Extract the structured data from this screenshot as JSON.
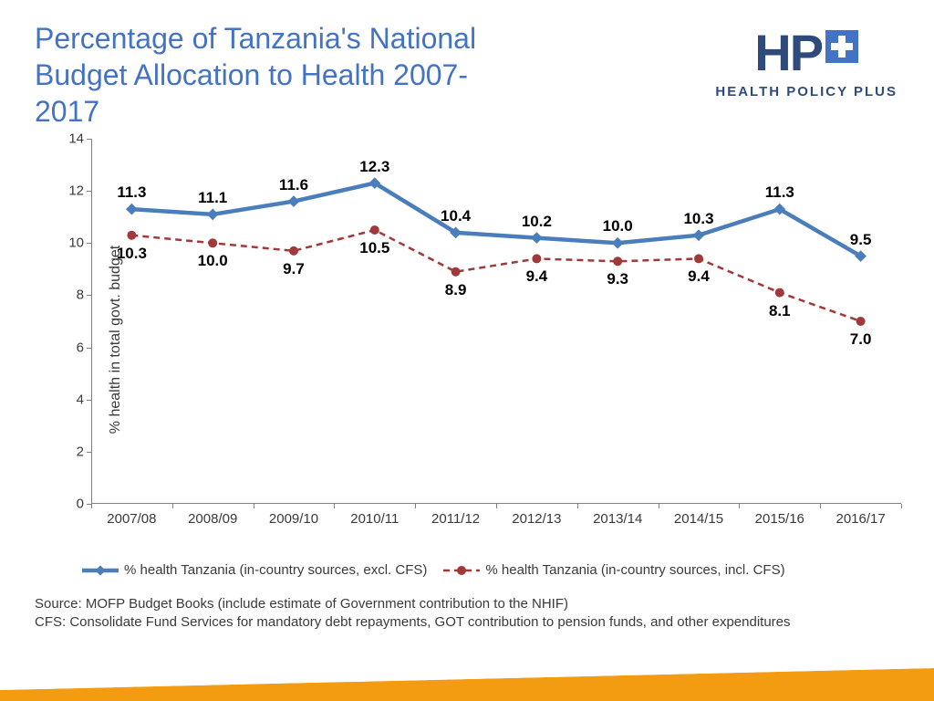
{
  "title": "Percentage of Tanzania's National Budget Allocation to Health 2007-2017",
  "logo": {
    "main": "HP",
    "sub": "HEALTH POLICY PLUS",
    "color_main": "#2f4b7c",
    "color_plus": "#4472c4"
  },
  "chart": {
    "type": "line",
    "y_label": "% health in total govt. budget",
    "ylim": [
      0,
      14
    ],
    "y_ticks": [
      0,
      2,
      4,
      6,
      8,
      10,
      12,
      14
    ],
    "categories": [
      "2007/08",
      "2008/09",
      "2009/10",
      "2010/11",
      "2011/12",
      "2012/13",
      "2013/14",
      "2014/15",
      "2015/16",
      "2016/17"
    ],
    "series": [
      {
        "name": "% health Tanzania (in-country sources, excl. CFS)",
        "values": [
          11.3,
          11.1,
          11.6,
          12.3,
          10.4,
          10.2,
          10.0,
          10.3,
          11.3,
          9.5
        ],
        "color": "#4a7ebb",
        "line_width": 4.5,
        "dash": "none",
        "marker": "diamond",
        "marker_size": 9,
        "label_pos": "above"
      },
      {
        "name": "% health Tanzania (in-country sources, incl. CFS)",
        "values": [
          10.3,
          10.0,
          9.7,
          10.5,
          8.9,
          9.4,
          9.3,
          9.4,
          8.1,
          7.0
        ],
        "color": "#a03a3a",
        "line_width": 2.5,
        "dash": "7 5",
        "marker": "circle",
        "marker_size": 5,
        "label_pos": "below"
      }
    ],
    "background_color": "#ffffff",
    "axis_color": "#808080",
    "label_fontsize": 17,
    "tick_fontsize": 15
  },
  "legend": {
    "items": [
      "% health Tanzania (in-country sources, excl. CFS)",
      "% health Tanzania (in-country sources, incl. CFS)"
    ]
  },
  "source": {
    "line1": "Source: MOFP Budget Books (include estimate of Government contribution to the NHIF)",
    "line2": "CFS: Consolidate Fund Services for mandatory debt repayments, GOT contribution to pension funds, and other expenditures"
  },
  "bottom_bar": {
    "color_top": "#ffffff",
    "color_main": "#f39c12"
  }
}
